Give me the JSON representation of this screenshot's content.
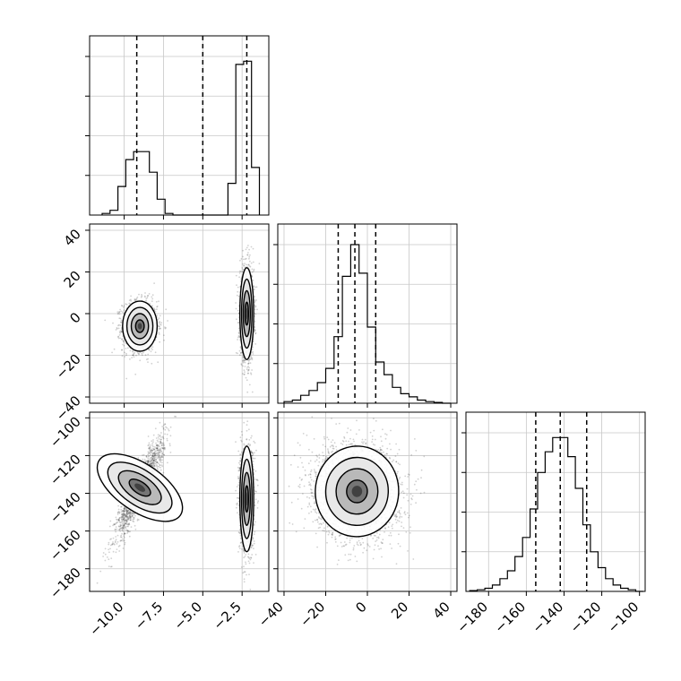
{
  "chart_data": {
    "type": "corner",
    "grid": true,
    "parameters": [
      {
        "range": [
          -12.2,
          -0.8
        ],
        "tick_values": [
          -10.0,
          -7.5,
          -5.0,
          -2.5
        ],
        "tick_labels": [
          "−10.0",
          "−7.5",
          "−5.0",
          "−2.5"
        ],
        "quantiles": [
          -9.2,
          -5.0,
          -2.2
        ],
        "histogram": {
          "bin_edges": [
            -11.4,
            -10.9,
            -10.4,
            -9.9,
            -9.4,
            -8.9,
            -8.4,
            -7.9,
            -7.4,
            -6.9,
            -6.4,
            -5.9,
            -5.4,
            -4.9,
            -4.4,
            -3.9,
            -3.4,
            -2.9,
            -2.4,
            -1.9,
            -1.4
          ],
          "counts": [
            0.01,
            0.03,
            0.18,
            0.35,
            0.4,
            0.4,
            0.27,
            0.1,
            0.01,
            0.0,
            0.0,
            0.0,
            0.0,
            0.0,
            0.0,
            0.0,
            0.2,
            0.95,
            0.97,
            0.3
          ],
          "ymax": 1.13
        }
      },
      {
        "range": [
          -43,
          43
        ],
        "tick_values": [
          -40,
          -20,
          0,
          20,
          40
        ],
        "tick_labels": [
          "−40",
          "−20",
          "0",
          "20",
          "40"
        ],
        "quantiles": [
          -14,
          -6,
          4
        ],
        "histogram": {
          "bin_edges": [
            -40,
            -36,
            -32,
            -28,
            -24,
            -20,
            -16,
            -12,
            -8,
            -4,
            0,
            4,
            8,
            12,
            16,
            20,
            24,
            28,
            32,
            36,
            40
          ],
          "counts": [
            0.01,
            0.02,
            0.05,
            0.08,
            0.13,
            0.22,
            0.42,
            0.8,
            1.0,
            0.82,
            0.48,
            0.26,
            0.18,
            0.1,
            0.06,
            0.04,
            0.02,
            0.01,
            0.005,
            0.0
          ],
          "ymax": 1.13
        }
      },
      {
        "range": [
          -192,
          -97
        ],
        "tick_values": [
          -180,
          -160,
          -140,
          -120,
          -100
        ],
        "tick_labels": [
          "−180",
          "−160",
          "−140",
          "−120",
          "−100"
        ],
        "quantiles": [
          -155,
          -142,
          -128
        ],
        "histogram": {
          "bin_edges": [
            -190,
            -186,
            -182,
            -178,
            -174,
            -170,
            -166,
            -162,
            -158,
            -154,
            -150,
            -146,
            -142,
            -138,
            -134,
            -130,
            -126,
            -122,
            -118,
            -114,
            -110,
            -106,
            -102,
            -98
          ],
          "counts": [
            0.005,
            0.01,
            0.02,
            0.04,
            0.08,
            0.13,
            0.22,
            0.34,
            0.52,
            0.75,
            0.88,
            0.97,
            0.97,
            0.85,
            0.65,
            0.42,
            0.25,
            0.15,
            0.08,
            0.04,
            0.02,
            0.01,
            0.0
          ],
          "ymax": 1.13
        }
      }
    ],
    "scatter_panels": [
      {
        "x_param": 0,
        "y_param": 1,
        "clusters": [
          {
            "mean": [
              -9.0,
              -6.0
            ],
            "sd": [
              0.55,
              6.0
            ],
            "rho": 0.0,
            "n": 1600
          },
          {
            "mean": [
              -2.2,
              0.0
            ],
            "sd": [
              0.22,
              11.0
            ],
            "rho": 0.0,
            "n": 1600
          }
        ]
      },
      {
        "x_param": 0,
        "y_param": 2,
        "clusters": [
          {
            "mean": [
              -9.0,
              -137.0
            ],
            "sd": [
              0.75,
              13.0
            ],
            "rho": 0.9,
            "n": 1600
          },
          {
            "mean": [
              -2.2,
              -143.0
            ],
            "sd": [
              0.22,
              14.0
            ],
            "rho": 0.0,
            "n": 1600
          }
        ]
      },
      {
        "x_param": 1,
        "y_param": 2,
        "clusters": [
          {
            "mean": [
              -5.0,
              -139.0
            ],
            "sd": [
              10.0,
              12.0
            ],
            "rho": -0.05,
            "n": 3200
          }
        ]
      }
    ]
  }
}
